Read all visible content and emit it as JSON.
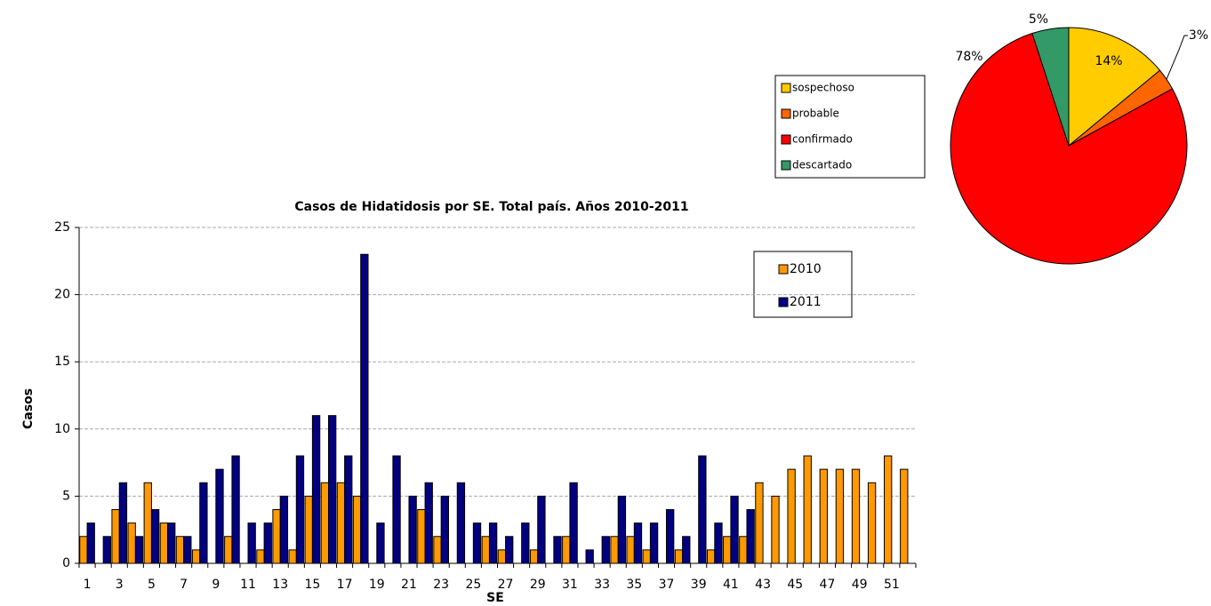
{
  "chart_data": [
    {
      "type": "bar",
      "title": "Casos de Hidatidosis por SE. Total país. Años 2010-2011",
      "x_label": "SE",
      "y_label": "Casos",
      "categories": [
        1,
        null,
        3,
        null,
        5,
        null,
        7,
        null,
        9,
        null,
        11,
        null,
        13,
        null,
        15,
        null,
        17,
        null,
        19,
        null,
        21,
        null,
        23,
        null,
        25,
        null,
        27,
        null,
        29,
        null,
        31,
        null,
        33,
        null,
        35,
        null,
        37,
        null,
        39,
        null,
        41,
        null,
        43,
        null,
        45,
        null,
        47,
        null,
        49,
        null,
        51,
        null
      ],
      "series": [
        {
          "name": "2010",
          "color": "#ff9900",
          "values": [
            2,
            0,
            4,
            3,
            6,
            3,
            2,
            1,
            0,
            2,
            0,
            1,
            4,
            1,
            5,
            6,
            6,
            5,
            0,
            0,
            0,
            4,
            2,
            0,
            0,
            2,
            1,
            0,
            1,
            0,
            2,
            0,
            0,
            2,
            2,
            1,
            0,
            1,
            0,
            1,
            2,
            2,
            6,
            5,
            7,
            8,
            7,
            7,
            7,
            6,
            8,
            7
          ]
        },
        {
          "name": "2011",
          "color": "#000080",
          "values": [
            3,
            2,
            6,
            2,
            4,
            3,
            2,
            6,
            7,
            8,
            3,
            3,
            5,
            8,
            11,
            11,
            8,
            23,
            3,
            8,
            5,
            6,
            5,
            6,
            3,
            3,
            2,
            3,
            5,
            2,
            6,
            1,
            2,
            5,
            3,
            3,
            4,
            2,
            8,
            3,
            5,
            4,
            0,
            0,
            0,
            0,
            0,
            0,
            0,
            0,
            0,
            0
          ]
        }
      ],
      "ylim": [
        0,
        25
      ],
      "yticks": [
        0,
        5,
        10,
        15,
        20,
        25
      ],
      "grid": true
    },
    {
      "type": "pie",
      "categories": [
        "sospechoso",
        "probable",
        "confirmado",
        "descartado"
      ],
      "values": [
        14,
        3,
        78,
        5
      ],
      "value_labels": [
        "14%",
        "3%",
        "78%",
        "5%"
      ],
      "colors": [
        "#ffcc00",
        "#ff6600",
        "#ff0000",
        "#339966"
      ]
    }
  ]
}
